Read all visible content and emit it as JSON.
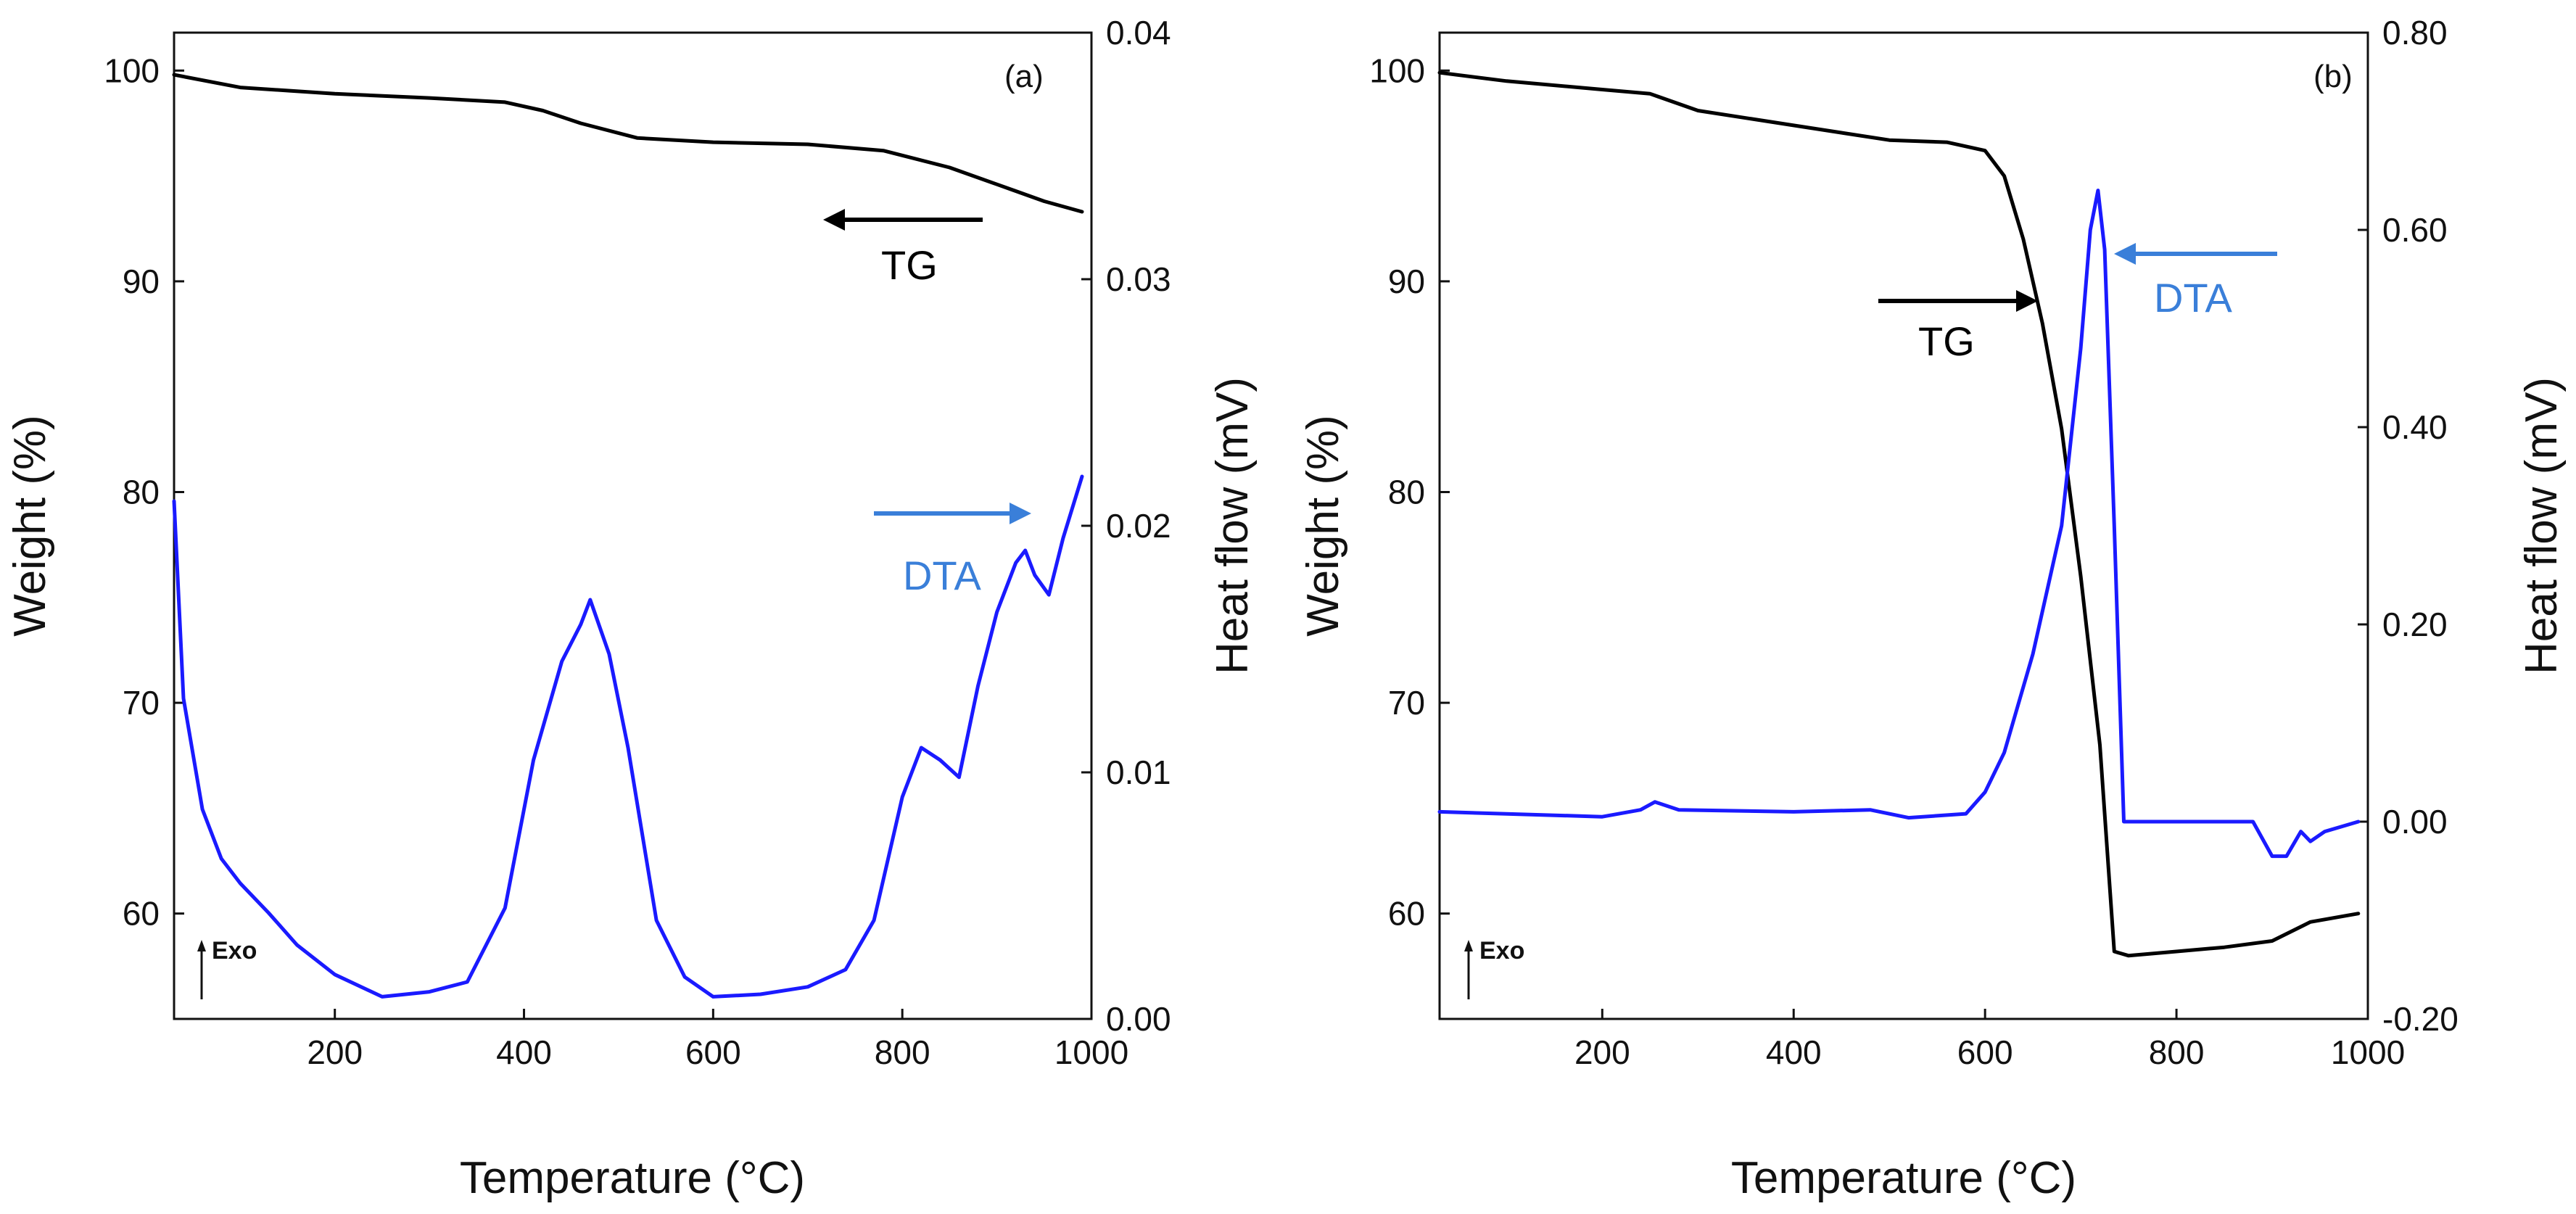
{
  "colors": {
    "tg": "#000000",
    "dta": "#1a1aff",
    "dta_label": "#3a7fd9"
  },
  "chart_data": [
    {
      "type": "line",
      "panel_label": "(a)",
      "xlabel": "Temperature (°C)",
      "ylabel_left": "Weight (%)",
      "ylabel_right": "Heat flow (mV)",
      "xlim": [
        30,
        1000
      ],
      "ylim_left": [
        55,
        101.8
      ],
      "ylim_right": [
        0.0,
        0.04
      ],
      "x_ticks": [
        "200",
        "400",
        "600",
        "800",
        "1000"
      ],
      "x_tick_values": [
        200,
        400,
        600,
        800,
        1000
      ],
      "y_ticks_left": [
        "60",
        "70",
        "80",
        "90",
        "100"
      ],
      "y_tick_values_left": [
        60,
        70,
        80,
        90,
        100
      ],
      "y_ticks_right": [
        "0.00",
        "0.01",
        "0.02",
        "0.03",
        "0.04"
      ],
      "y_tick_values_right": [
        0.0,
        0.01,
        0.02,
        0.03,
        0.04
      ],
      "series": [
        {
          "name": "TG",
          "axis": "left",
          "color": "#000000",
          "x": [
            30,
            100,
            200,
            300,
            380,
            420,
            460,
            520,
            600,
            700,
            780,
            850,
            900,
            950,
            990
          ],
          "y": [
            99.8,
            99.2,
            98.9,
            98.7,
            98.5,
            98.1,
            97.5,
            96.8,
            96.6,
            96.5,
            96.2,
            95.4,
            94.6,
            93.8,
            93.3
          ]
        },
        {
          "name": "DTA",
          "axis": "right",
          "color": "#1a1aff",
          "x": [
            30,
            40,
            60,
            80,
            100,
            130,
            160,
            200,
            250,
            300,
            340,
            380,
            410,
            440,
            460,
            470,
            490,
            510,
            540,
            570,
            600,
            650,
            700,
            740,
            770,
            800,
            820,
            840,
            860,
            880,
            900,
            920,
            930,
            940,
            955,
            970,
            990
          ],
          "y": [
            0.021,
            0.013,
            0.0085,
            0.0065,
            0.0055,
            0.0043,
            0.003,
            0.0018,
            0.0009,
            0.0011,
            0.0015,
            0.0045,
            0.0105,
            0.0145,
            0.016,
            0.017,
            0.0148,
            0.011,
            0.004,
            0.0017,
            0.0009,
            0.001,
            0.0013,
            0.002,
            0.004,
            0.009,
            0.011,
            0.0105,
            0.0098,
            0.0135,
            0.0165,
            0.0185,
            0.019,
            0.018,
            0.0172,
            0.0195,
            0.022
          ]
        }
      ],
      "annotations": {
        "tg_label": "TG",
        "dta_label": "DTA",
        "exo_label": "Exo"
      }
    },
    {
      "type": "line",
      "panel_label": "(b)",
      "xlabel": "Temperature (°C)",
      "ylabel_left": "Weight (%)",
      "ylabel_right": "Heat flow (mV)",
      "xlim": [
        30,
        1000
      ],
      "ylim_left": [
        55,
        101.8
      ],
      "ylim_right": [
        -0.2,
        0.8
      ],
      "x_ticks": [
        "200",
        "400",
        "600",
        "800",
        "1000"
      ],
      "x_tick_values": [
        200,
        400,
        600,
        800,
        1000
      ],
      "y_ticks_left": [
        "60",
        "70",
        "80",
        "90",
        "100"
      ],
      "y_tick_values_left": [
        60,
        70,
        80,
        90,
        100
      ],
      "y_ticks_right": [
        "-0.20",
        "0.00",
        "0.20",
        "0.40",
        "0.60",
        "0.80"
      ],
      "y_tick_values_right": [
        -0.2,
        0.0,
        0.2,
        0.4,
        0.6,
        0.8
      ],
      "series": [
        {
          "name": "TG",
          "axis": "left",
          "color": "#000000",
          "x": [
            30,
            100,
            200,
            250,
            300,
            400,
            500,
            560,
            600,
            620,
            640,
            660,
            680,
            700,
            720,
            735,
            750,
            800,
            850,
            900,
            940,
            990
          ],
          "y": [
            99.9,
            99.5,
            99.1,
            98.9,
            98.1,
            97.4,
            96.7,
            96.6,
            96.2,
            95.0,
            92.0,
            88.0,
            83.0,
            76.0,
            68.0,
            58.2,
            58.0,
            58.2,
            58.4,
            58.7,
            59.6,
            60.0
          ]
        },
        {
          "name": "DTA",
          "axis": "right",
          "color": "#1a1aff",
          "x": [
            30,
            200,
            240,
            255,
            280,
            400,
            480,
            520,
            580,
            600,
            620,
            650,
            680,
            700,
            710,
            718,
            725,
            735,
            745,
            800,
            880,
            900,
            915,
            930,
            940,
            955,
            990
          ],
          "y": [
            0.01,
            0.005,
            0.012,
            0.02,
            0.012,
            0.01,
            0.012,
            0.004,
            0.008,
            0.03,
            0.07,
            0.17,
            0.3,
            0.48,
            0.6,
            0.64,
            0.58,
            0.3,
            0.0,
            0.0,
            0.0,
            -0.035,
            -0.035,
            -0.01,
            -0.02,
            -0.01,
            0.0
          ]
        }
      ],
      "annotations": {
        "tg_label": "TG",
        "dta_label": "DTA",
        "exo_label": "Exo"
      }
    }
  ]
}
